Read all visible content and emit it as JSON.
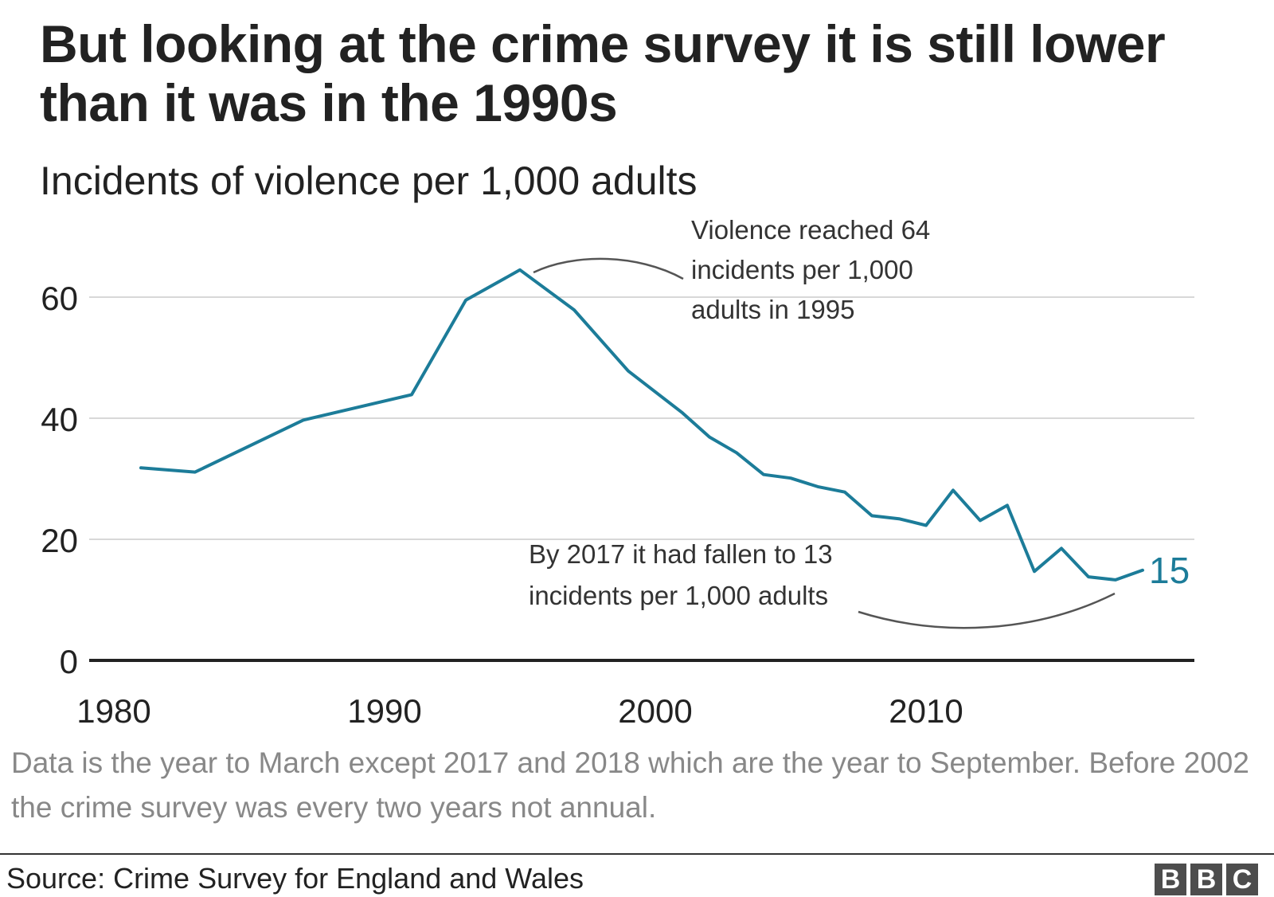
{
  "title": "But looking at the crime survey it is still lower than it was in the 1990s",
  "subtitle": "Incidents of violence per 1,000 adults",
  "note": "Data is the year to March except 2017 and 2018 which are the year to September. Before 2002 the crime survey was every two years not annual.",
  "source": "Source: Crime Survey for England and Wales",
  "logo": {
    "letters": [
      "B",
      "B",
      "C"
    ],
    "color": "#4d4d4d"
  },
  "colors": {
    "line": "#1c7c99",
    "axis": "#222222",
    "grid": "#cccccc",
    "annotation_text": "#333333"
  },
  "chart_data": {
    "type": "line",
    "x": [
      1981,
      1983,
      1987,
      1991,
      1993,
      1995,
      1997,
      1999,
      2001,
      2002,
      2003,
      2004,
      2005,
      2006,
      2007,
      2008,
      2009,
      2010,
      2011,
      2012,
      2013,
      2014,
      2015,
      2016,
      2017,
      2018
    ],
    "series": [
      {
        "values": [
          31.8,
          31.1,
          39.7,
          43.9,
          59.5,
          64.5,
          57.9,
          47.8,
          40.9,
          36.9,
          34.3,
          30.7,
          30.1,
          28.7,
          27.8,
          23.9,
          23.4,
          22.3,
          28.1,
          23.1,
          25.6,
          14.7,
          18.5,
          13.8,
          13.3,
          14.9
        ]
      }
    ],
    "xticks": [
      1980,
      1990,
      2000,
      2010
    ],
    "xtick_labels": [
      "1980",
      "1990",
      "2000",
      "2010"
    ],
    "yticks": [
      0,
      20,
      40,
      60
    ],
    "ytick_labels": [
      "0",
      "20",
      "40",
      "60"
    ],
    "xlim": [
      1980,
      2020
    ],
    "ylim": [
      0,
      70
    ],
    "grid": true,
    "end_label": "15",
    "annotations": [
      {
        "lines": [
          "Violence reached 64",
          "incidents per 1,000",
          "adults in 1995"
        ]
      },
      {
        "lines": [
          "By 2017 it had fallen to 13",
          "incidents per 1,000 adults"
        ]
      }
    ]
  }
}
